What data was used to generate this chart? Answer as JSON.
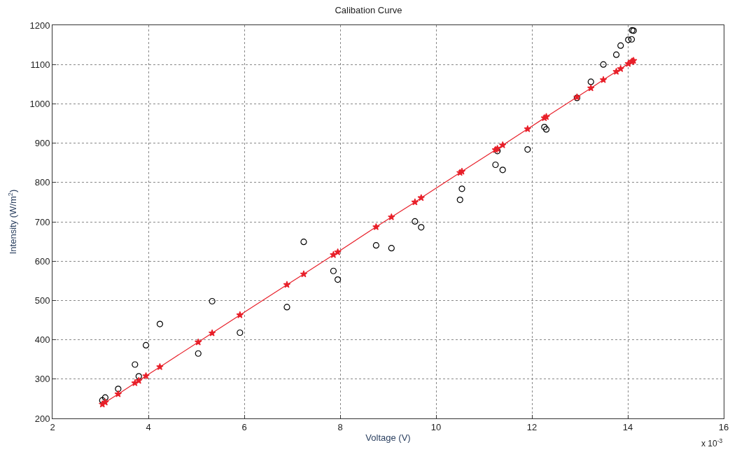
{
  "chart_data": {
    "type": "scatter",
    "title": "Calibation Curve",
    "xlabel": "Voltage (V)",
    "ylabel": "Intensity (W/m$^{2}$)",
    "annotations": [
      "x 10$^{-3}$"
    ],
    "xlim": [
      2,
      16
    ],
    "xticks": [
      2,
      4,
      6,
      8,
      10,
      12,
      14,
      16
    ],
    "ylim": [
      200,
      1200
    ],
    "yticks": [
      200,
      300,
      400,
      500,
      600,
      700,
      800,
      900,
      1000,
      1100,
      1200
    ],
    "grid": true,
    "series": [
      {
        "marker": "circle",
        "color": "#000000",
        "x": [
          3.04,
          3.1,
          3.37,
          3.72,
          3.8,
          3.95,
          4.24,
          5.04,
          5.33,
          5.91,
          6.89,
          7.24,
          7.86,
          7.95,
          8.75,
          9.07,
          9.56,
          9.69,
          10.5,
          10.54,
          11.24,
          11.28,
          11.39,
          11.91,
          12.26,
          12.3,
          12.94,
          13.23,
          13.49,
          13.76,
          13.85,
          14.01,
          14.08,
          14.09,
          14.12
        ],
        "values": [
          246,
          253,
          275,
          337,
          307,
          386,
          440,
          365,
          498,
          418,
          483,
          649,
          575,
          553,
          640,
          633,
          701,
          686,
          756,
          784,
          845,
          880,
          832,
          884,
          941,
          935,
          1015,
          1056,
          1100,
          1125,
          1148,
          1163,
          1164,
          1187,
          1186
        ]
      },
      {
        "type": "line",
        "marker": "star",
        "line_style": "solid",
        "color": "#e8202a",
        "x": [
          3.04,
          3.1,
          3.37,
          3.72,
          3.8,
          3.95,
          4.24,
          5.04,
          5.33,
          5.91,
          6.89,
          7.24,
          7.86,
          7.95,
          8.75,
          9.07,
          9.56,
          9.69,
          10.5,
          10.54,
          11.24,
          11.28,
          11.39,
          11.91,
          12.26,
          12.3,
          12.94,
          13.23,
          13.49,
          13.76,
          13.85,
          14.01,
          14.08,
          14.09,
          14.12
        ],
        "values": [
          236,
          241,
          262,
          290,
          296,
          308,
          331,
          394,
          417,
          463,
          540,
          567,
          616,
          623,
          687,
          712,
          750,
          761,
          825,
          828,
          883,
          886,
          895,
          936,
          964,
          967,
          1017,
          1040,
          1061,
          1082,
          1089,
          1102,
          1107,
          1108,
          1110
        ]
      }
    ]
  }
}
